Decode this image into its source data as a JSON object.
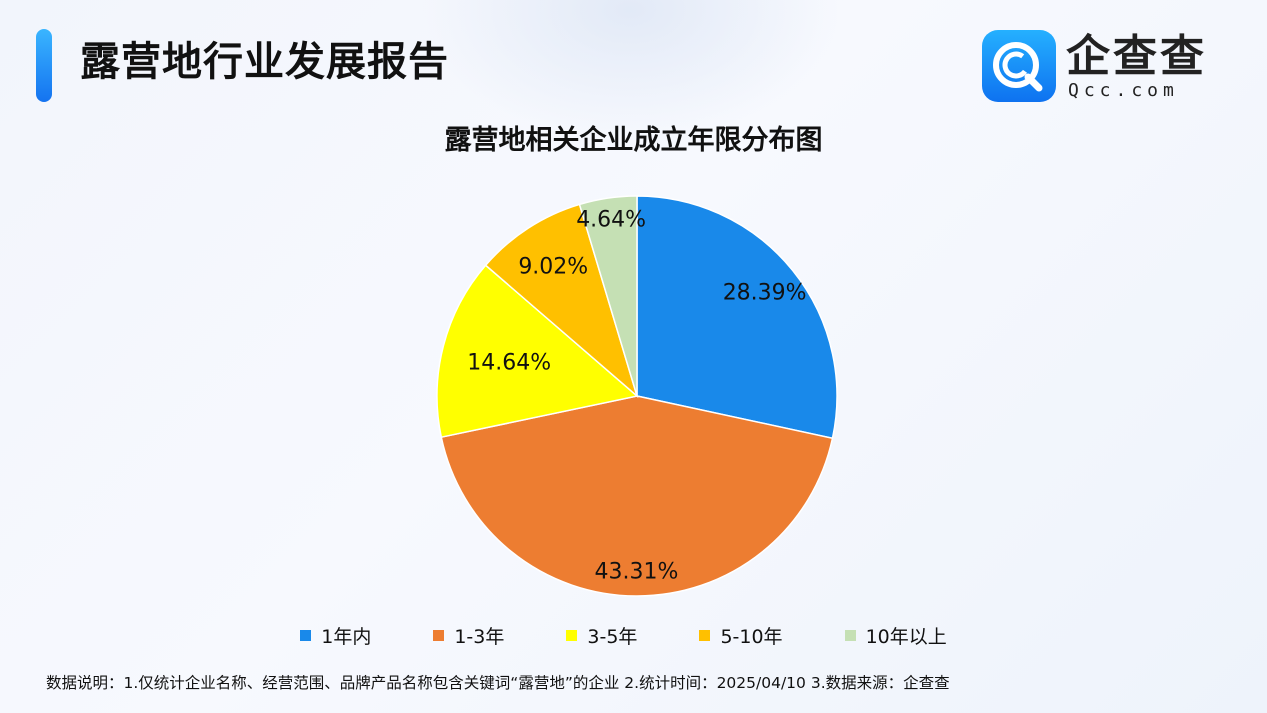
{
  "header": {
    "title": "露营地行业发展报告",
    "logo_name": "企查查",
    "logo_domain": "Qcc.com"
  },
  "chart_data": {
    "type": "pie",
    "title": "露营地相关企业成立年限分布图",
    "categories": [
      "1年内",
      "1-3年",
      "3-5年",
      "5-10年",
      "10年以上"
    ],
    "values": [
      28.39,
      43.31,
      14.64,
      9.02,
      4.64
    ],
    "value_labels": [
      "28.39%",
      "43.31%",
      "14.64%",
      "9.02%",
      "4.64%"
    ],
    "colors": [
      "#1989EA",
      "#ED7D31",
      "#FFFF00",
      "#FFC000",
      "#C5E0B4"
    ],
    "start": "12 o'clock",
    "direction": "clockwise",
    "legend_position": "bottom"
  },
  "footnote": "数据说明：1.仅统计企业名称、经营范围、品牌产品名称包含关键词“露营地”的企业   2.统计时间：2025/04/10    3.数据来源：企查查"
}
